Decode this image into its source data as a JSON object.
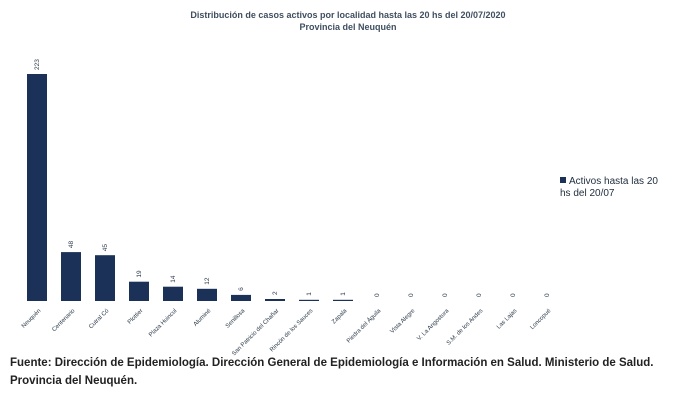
{
  "chart_data": {
    "type": "bar",
    "title": "Distribución de casos activos por localidad hasta las 20 hs del 20/07/2020",
    "subtitle": "Provincia del Neuquén",
    "categories": [
      "Neuquén",
      "Centenario",
      "Cutral Có",
      "Plottier",
      "Plaza Huincul",
      "Aluminé",
      "Senillosa",
      "San Patricio del Chañar",
      "Rincón de los Sauces",
      "Zapala",
      "Piedra del Águila",
      "Vista Alegre",
      "V. La Angostura",
      "S.M. de los Andes",
      "Las Lajas",
      "Loncopué"
    ],
    "series": [
      {
        "name": "Activos hasta las 20 hs del 20/07",
        "values": [
          223,
          48,
          45,
          19,
          14,
          12,
          6,
          2,
          1,
          1,
          0,
          0,
          0,
          0,
          0,
          0
        ],
        "color": "#1c3158"
      }
    ],
    "value_labels": [
      "223",
      "48",
      "45",
      "19",
      "14",
      "12",
      "6",
      "2",
      "1",
      "1",
      "0",
      "0",
      "0",
      "0",
      "0",
      "0"
    ],
    "ylim": [
      0,
      223
    ],
    "grid": false,
    "legend_position": "right",
    "xlabel": "",
    "ylabel": ""
  },
  "legend": {
    "label": "Activos hasta las 20 hs del 20/07"
  },
  "source_note": "Fuente: Dirección de Epidemiología. Dirección General de Epidemiología e Información en Salud. Ministerio de Salud. Provincia del Neuquén."
}
